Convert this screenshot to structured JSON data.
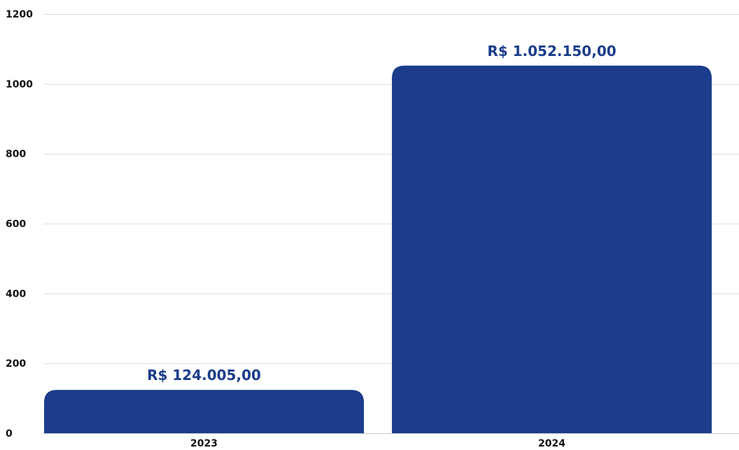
{
  "chart_data": {
    "type": "bar",
    "categories": [
      "2023",
      "2024"
    ],
    "values": [
      124.005,
      1052.15
    ],
    "data_labels": [
      "R$ 124.005,00",
      "R$ 1.052.150,00"
    ],
    "y_ticks": [
      "0",
      "200",
      "400",
      "600",
      "800",
      "1000",
      "1200"
    ],
    "ylim": [
      0,
      1200
    ],
    "grid": true,
    "legend": "none",
    "title": "",
    "xlabel": "",
    "ylabel": "",
    "bar_color": "#1b3d8b",
    "label_color": "#1b3d8b"
  }
}
